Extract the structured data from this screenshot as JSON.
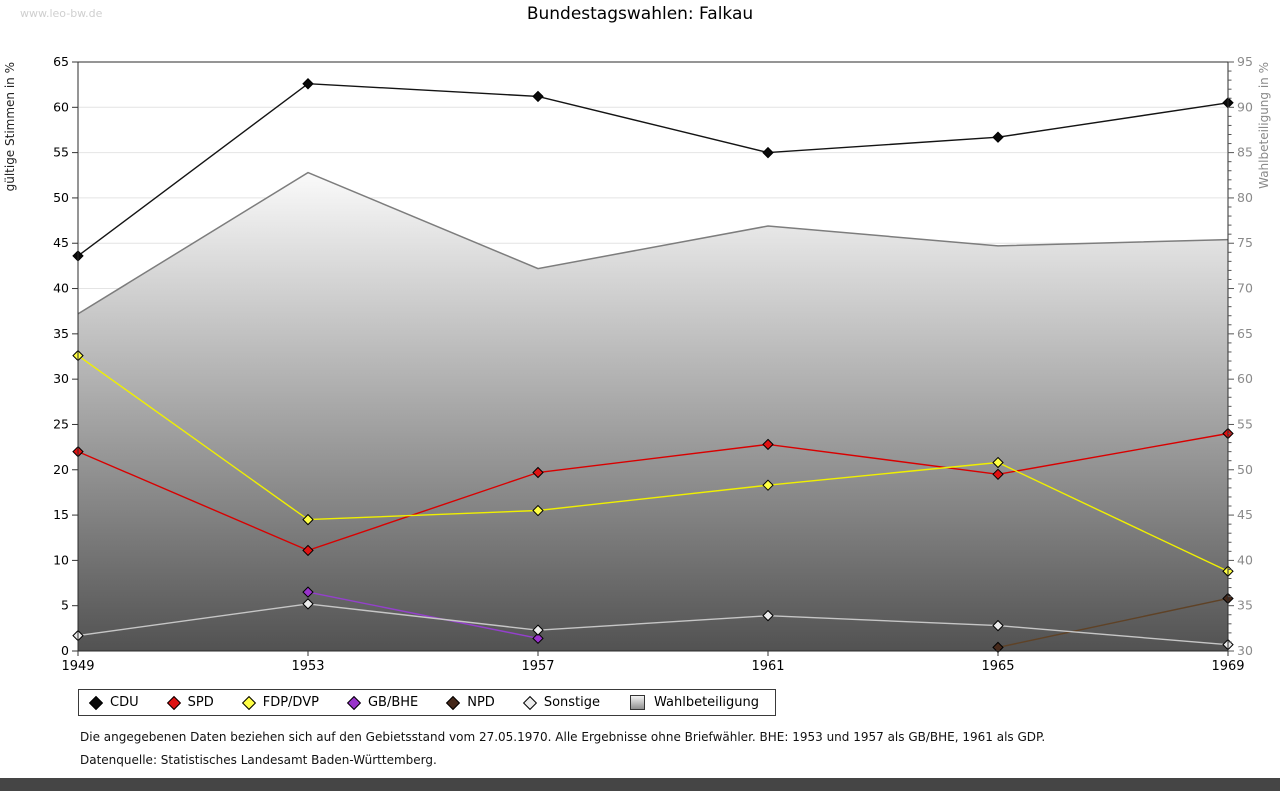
{
  "page": {
    "watermark": "www.leo-bw.de",
    "title": "Bundestagswahlen: Falkau"
  },
  "chart_data": {
    "type": "line",
    "title": "Bundestagswahlen: Falkau",
    "categories": [
      "1949",
      "1953",
      "1957",
      "1961",
      "1965",
      "1969"
    ],
    "left_axis": {
      "label": "gültige Stimmen in %",
      "min": 0,
      "max": 65,
      "step": 5
    },
    "right_axis": {
      "label": "Wahlbeteiligung in %",
      "min": 30,
      "max": 95,
      "step": 5,
      "minor_step": 1
    },
    "grid": "horizontal",
    "legend_position": "bottom",
    "series": [
      {
        "name": "CDU",
        "axis": "left",
        "kind": "line",
        "color": "#141414",
        "marker_fill": "#0a0a0a",
        "values": [
          43.6,
          62.6,
          61.2,
          55.0,
          56.7,
          60.5
        ]
      },
      {
        "name": "SPD",
        "axis": "left",
        "kind": "line",
        "color": "#d90000",
        "marker_fill": "#e01212",
        "values": [
          22.0,
          11.1,
          19.7,
          22.8,
          19.5,
          24.0
        ]
      },
      {
        "name": "FDP/DVP",
        "axis": "left",
        "kind": "line",
        "color": "#f0f000",
        "marker_fill": "#ffff44",
        "values": [
          32.6,
          14.5,
          15.5,
          18.3,
          20.8,
          8.8
        ]
      },
      {
        "name": "GB/BHE",
        "axis": "left",
        "kind": "line",
        "color": "#9440cc",
        "marker_fill": "#9933cc",
        "values": [
          null,
          6.5,
          1.4,
          null,
          null,
          null
        ]
      },
      {
        "name": "NPD",
        "axis": "left",
        "kind": "line",
        "color": "#5f4226",
        "marker_fill": "#46291b",
        "values": [
          null,
          null,
          null,
          null,
          0.4,
          5.8
        ]
      },
      {
        "name": "Sonstige",
        "axis": "left",
        "kind": "line",
        "color": "#c6c6c6",
        "marker_fill": "#ececec",
        "values": [
          1.7,
          5.2,
          2.3,
          3.9,
          2.8,
          0.7
        ]
      },
      {
        "name": "Wahlbeteiligung",
        "axis": "right",
        "kind": "area",
        "color": "#7d7d7d",
        "values": [
          67.2,
          82.8,
          72.2,
          76.9,
          74.7,
          75.4
        ]
      }
    ]
  },
  "footnotes": {
    "line1": "Die angegebenen Daten beziehen sich auf den Gebietsstand vom 27.05.1970. Alle Ergebnisse ohne Briefwähler. BHE: 1953 und 1957 als GB/BHE, 1961 als GDP.",
    "line2": "Datenquelle: Statistisches Landesamt Baden-Württemberg."
  },
  "colors": {
    "grid": "#e4e4e4",
    "plot_border": "#2b2b2b",
    "right_axis_text": "#8a8a8a",
    "area_gradient_top": "#fbfbfb",
    "area_gradient_bottom": "#525252",
    "bottom_bar": "#454545",
    "watermark": "#cfcfcf"
  }
}
